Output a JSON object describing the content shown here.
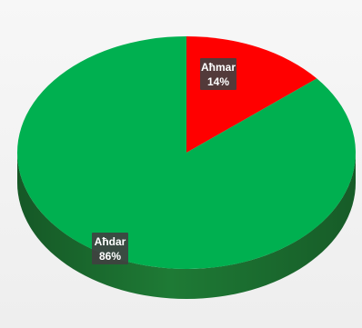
{
  "chart_data": {
    "type": "pie",
    "title": "",
    "style": "3d",
    "legend": "none",
    "slices": [
      {
        "label": "Aħmar",
        "value": 14,
        "value_label": "14%",
        "color": "#ff0000",
        "side_color": "#b30000"
      },
      {
        "label": "Aħdar",
        "value": 86,
        "value_label": "86%",
        "color": "#00b050",
        "side_color": "#1e7a35"
      }
    ]
  }
}
